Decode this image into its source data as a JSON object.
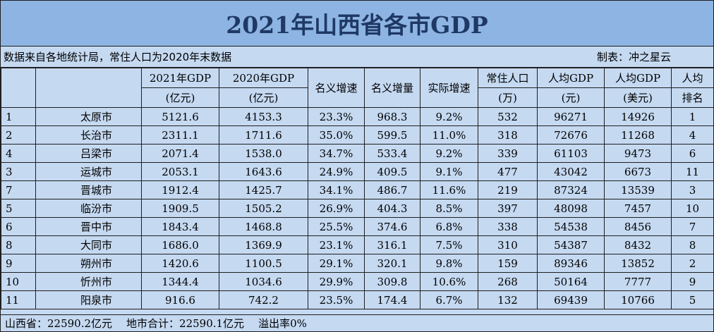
{
  "title": "2021年山西省各市GDP",
  "note": {
    "source": "数据来自各地统计局，常住人口为2020年末数据",
    "author": "制表：冲之星云"
  },
  "headers": {
    "gdp2021": [
      "2021年GDP",
      "(亿元)"
    ],
    "gdp2020": [
      "2020年GDP",
      "(亿元)"
    ],
    "nominal_growth": "名义增速",
    "nominal_increase": "名义增量",
    "real_growth": "实际增速",
    "population": [
      "常住人口",
      "(万)"
    ],
    "per_capita_cny": [
      "人均GDP",
      "(元)"
    ],
    "per_capita_usd": [
      "人均GDP",
      "(美元)"
    ],
    "per_capita_rank": [
      "人均",
      "排名"
    ]
  },
  "rows": [
    {
      "rank": "1",
      "city": "太原市",
      "gdp2021": "5121.6",
      "gdp2020": "4153.3",
      "nominal_growth": "23.3%",
      "nominal_increase": "968.3",
      "real_growth": "9.2%",
      "population": "532",
      "per_capita_cny": "96271",
      "per_capita_usd": "14926",
      "pc_rank": "1"
    },
    {
      "rank": "2",
      "city": "长治市",
      "gdp2021": "2311.1",
      "gdp2020": "1711.6",
      "nominal_growth": "35.0%",
      "nominal_increase": "599.5",
      "real_growth": "11.0%",
      "population": "318",
      "per_capita_cny": "72676",
      "per_capita_usd": "11268",
      "pc_rank": "4"
    },
    {
      "rank": "4",
      "city": "吕梁市",
      "gdp2021": "2071.4",
      "gdp2020": "1538.0",
      "nominal_growth": "34.7%",
      "nominal_increase": "533.4",
      "real_growth": "9.2%",
      "population": "339",
      "per_capita_cny": "61103",
      "per_capita_usd": "9473",
      "pc_rank": "6"
    },
    {
      "rank": "3",
      "city": "运城市",
      "gdp2021": "2053.1",
      "gdp2020": "1643.6",
      "nominal_growth": "24.9%",
      "nominal_increase": "409.5",
      "real_growth": "9.1%",
      "population": "477",
      "per_capita_cny": "43042",
      "per_capita_usd": "6673",
      "pc_rank": "11"
    },
    {
      "rank": "7",
      "city": "晋城市",
      "gdp2021": "1912.4",
      "gdp2020": "1425.7",
      "nominal_growth": "34.1%",
      "nominal_increase": "486.7",
      "real_growth": "11.6%",
      "population": "219",
      "per_capita_cny": "87324",
      "per_capita_usd": "13539",
      "pc_rank": "3"
    },
    {
      "rank": "5",
      "city": "临汾市",
      "gdp2021": "1909.5",
      "gdp2020": "1505.2",
      "nominal_growth": "26.9%",
      "nominal_increase": "404.3",
      "real_growth": "8.5%",
      "population": "397",
      "per_capita_cny": "48098",
      "per_capita_usd": "7457",
      "pc_rank": "10"
    },
    {
      "rank": "6",
      "city": "晋中市",
      "gdp2021": "1843.4",
      "gdp2020": "1468.8",
      "nominal_growth": "25.5%",
      "nominal_increase": "374.6",
      "real_growth": "6.8%",
      "population": "338",
      "per_capita_cny": "54538",
      "per_capita_usd": "8456",
      "pc_rank": "7"
    },
    {
      "rank": "8",
      "city": "大同市",
      "gdp2021": "1686.0",
      "gdp2020": "1369.9",
      "nominal_growth": "23.1%",
      "nominal_increase": "316.1",
      "real_growth": "7.5%",
      "population": "310",
      "per_capita_cny": "54387",
      "per_capita_usd": "8432",
      "pc_rank": "8"
    },
    {
      "rank": "9",
      "city": "朔州市",
      "gdp2021": "1420.6",
      "gdp2020": "1100.5",
      "nominal_growth": "29.1%",
      "nominal_increase": "320.1",
      "real_growth": "9.8%",
      "population": "159",
      "per_capita_cny": "89346",
      "per_capita_usd": "13852",
      "pc_rank": "2"
    },
    {
      "rank": "10",
      "city": "忻州市",
      "gdp2021": "1344.4",
      "gdp2020": "1034.6",
      "nominal_growth": "29.9%",
      "nominal_increase": "309.8",
      "real_growth": "10.6%",
      "population": "268",
      "per_capita_cny": "50164",
      "per_capita_usd": "7777",
      "pc_rank": "9"
    },
    {
      "rank": "11",
      "city": "阳泉市",
      "gdp2021": "916.6",
      "gdp2020": "742.2",
      "nominal_growth": "23.5%",
      "nominal_increase": "174.4",
      "real_growth": "6.7%",
      "population": "132",
      "per_capita_cny": "69439",
      "per_capita_usd": "10766",
      "pc_rank": "5"
    }
  ],
  "footer": {
    "province_total": "山西省：22590.2亿元",
    "city_sum": "地市合计：22590.1亿元",
    "overflow": "溢出率0%"
  },
  "colors": {
    "title_bg": "#8db4e2",
    "title_text": "#1f3864",
    "body_bg": "#c5d9f1"
  }
}
